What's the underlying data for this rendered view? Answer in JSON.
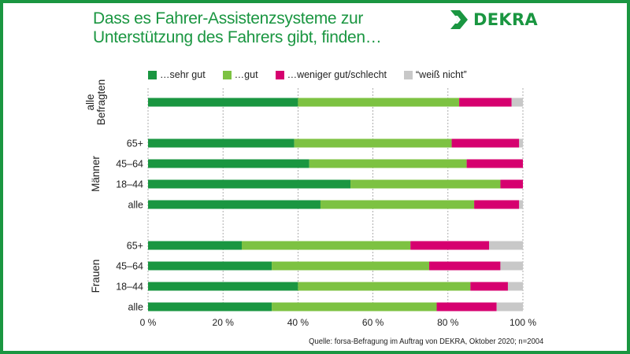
{
  "title": {
    "line1": "Dass es Fahrer-Assistenzsysteme zur",
    "line2": "Unterstützung des Fahrers gibt, finden…"
  },
  "logo": {
    "text": "DEKRA",
    "icon": "dekra-chevron-icon"
  },
  "colors": {
    "frame": "#1a9641",
    "title": "#1a9641",
    "sehr_gut": "#1a9641",
    "gut": "#7dc242",
    "weniger": "#d6006f",
    "weiss_nicht": "#c8c8c8",
    "grid": "#999999"
  },
  "source": "Quelle: forsa-Befragung im Auftrag von DEKRA, Oktober 2020; n=2004",
  "chart_data": {
    "type": "bar",
    "orientation": "horizontal",
    "stacked": true,
    "legend_position": "top",
    "grid": true,
    "xlim": [
      0,
      100
    ],
    "x_ticks": [
      "0 %",
      "20 %",
      "40 %",
      "60 %",
      "80 %",
      "100 %"
    ],
    "series": [
      {
        "name": "…sehr gut",
        "color": "#1a9641"
      },
      {
        "name": "…gut",
        "color": "#7dc242"
      },
      {
        "name": "…weniger gut/schlecht",
        "color": "#d6006f"
      },
      {
        "name": "“weiß nicht”",
        "color": "#c8c8c8"
      }
    ],
    "groups": [
      {
        "label": "alle Befragten",
        "label_lines": [
          "alle",
          "Befragten"
        ],
        "rows": [
          {
            "label": "",
            "values": [
              40,
              43,
              14,
              3
            ]
          }
        ]
      },
      {
        "label": "Männer",
        "label_lines": [
          "Männer"
        ],
        "rows": [
          {
            "label": "65+",
            "values": [
              39,
              42,
              18,
              1
            ]
          },
          {
            "label": "45–64",
            "values": [
              43,
              42,
              15,
              0
            ]
          },
          {
            "label": "18–44",
            "values": [
              54,
              40,
              6,
              0
            ]
          },
          {
            "label": "alle",
            "values": [
              46,
              41,
              12,
              1
            ]
          }
        ]
      },
      {
        "label": "Frauen",
        "label_lines": [
          "Frauen"
        ],
        "rows": [
          {
            "label": "65+",
            "values": [
              25,
              45,
              21,
              9
            ]
          },
          {
            "label": "45–64",
            "values": [
              33,
              42,
              19,
              6
            ]
          },
          {
            "label": "18–44",
            "values": [
              40,
              46,
              10,
              4
            ]
          },
          {
            "label": "alle",
            "values": [
              33,
              44,
              16,
              7
            ]
          }
        ]
      }
    ]
  }
}
